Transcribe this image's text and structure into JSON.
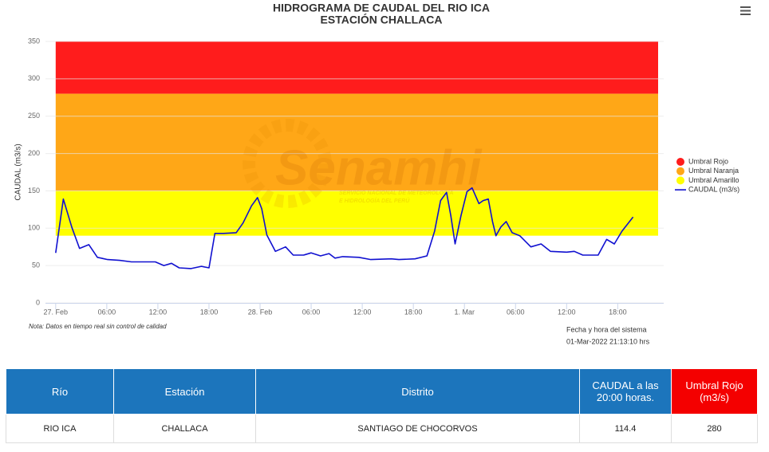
{
  "chart_data": {
    "type": "line",
    "title": "HIDROGRAMA DE CAUDAL DEL RIO ICA",
    "subtitle": "ESTACIÓN CHALLACA",
    "ylabel": "CAUDAL (m3/s)",
    "x": [
      0,
      0.9,
      1.9,
      2.8,
      3.9,
      4.9,
      6.1,
      7.5,
      8.9,
      11.7,
      12.7,
      13.6,
      14.5,
      15.9,
      17.1,
      18,
      18.7,
      19.7,
      21.2,
      22,
      23,
      23.7,
      24.2,
      24.8,
      25.8,
      27,
      27.9,
      29.1,
      30,
      31.1,
      32.1,
      32.8,
      33.7,
      35.6,
      37,
      39.4,
      40.3,
      42.2,
      43.6,
      44.5,
      45.2,
      45.9,
      46.4,
      46.9,
      47.6,
      48.3,
      48.9,
      49.7,
      50.2,
      50.8,
      51.3,
      51.7,
      52.3,
      52.9,
      53.6,
      54.5,
      55.8,
      57,
      58.1,
      60,
      60.9,
      61.9,
      63.7,
      64.7,
      65.6,
      66.5,
      67.8
    ],
    "series": [
      {
        "name": "CAUDAL (m3/s)",
        "color": "#1010d0",
        "values": [
          67,
          139,
          101,
          73,
          78,
          61,
          58,
          57,
          55,
          55,
          50,
          53,
          47,
          46,
          49,
          47,
          93,
          93,
          94,
          107,
          130,
          141,
          126,
          91,
          69,
          75,
          64,
          64,
          67,
          63,
          66,
          60,
          62,
          61,
          58,
          59,
          58,
          59,
          63,
          96,
          137,
          148,
          117,
          79,
          117,
          149,
          154,
          133,
          137,
          139,
          109,
          90,
          102,
          109,
          94,
          90,
          75,
          79,
          69,
          68,
          69,
          64,
          64,
          85,
          79,
          96,
          115
        ]
      }
    ],
    "thresholds": [
      {
        "name": "Umbral Rojo",
        "color": "#ff1c1c",
        "from": 280,
        "to": 350
      },
      {
        "name": "Umbral Naranja",
        "color": "#ffa717",
        "from": 150,
        "to": 280
      },
      {
        "name": "Umbral Amarillo",
        "color": "#ffff00",
        "from": 90,
        "to": 150
      }
    ],
    "xlim": [
      -1.2,
      71.4
    ],
    "xticks": [
      {
        "value": 0,
        "label": "27. Feb"
      },
      {
        "value": 6,
        "label": "06:00"
      },
      {
        "value": 12,
        "label": "12:00"
      },
      {
        "value": 18,
        "label": "18:00"
      },
      {
        "value": 24,
        "label": "28. Feb"
      },
      {
        "value": 30,
        "label": "06:00"
      },
      {
        "value": 36,
        "label": "12:00"
      },
      {
        "value": 42,
        "label": "18:00"
      },
      {
        "value": 48,
        "label": "1. Mar"
      },
      {
        "value": 54,
        "label": "06:00"
      },
      {
        "value": 60,
        "label": "12:00"
      },
      {
        "value": 66,
        "label": "18:00"
      }
    ],
    "ylim": [
      0,
      350
    ],
    "yticks": [
      0,
      50,
      100,
      150,
      200,
      250,
      300,
      350
    ],
    "grid": true,
    "legend": "right",
    "note": "Nota: Datos en tiempo real sin control de calidad",
    "system_time_label": "Fecha y hora del sistema",
    "system_time": "01-Mar-2022 21:13:10 hrs",
    "watermark": "Senamhi",
    "watermark_lines": [
      "SERVICIO NACIONAL DE METEOROLOGÍA",
      "E HIDROLOGÍA DEL PERÚ"
    ]
  },
  "table": {
    "header": [
      "Río",
      "Estación",
      "Distrito",
      "CAUDAL a las 20:00 horas.",
      "Umbral Rojo (m3/s)"
    ],
    "rows": [
      [
        "RIO ICA",
        "CHALLACA",
        "SANTIAGO DE CHOCORVOS",
        "114.4",
        "280"
      ]
    ]
  }
}
